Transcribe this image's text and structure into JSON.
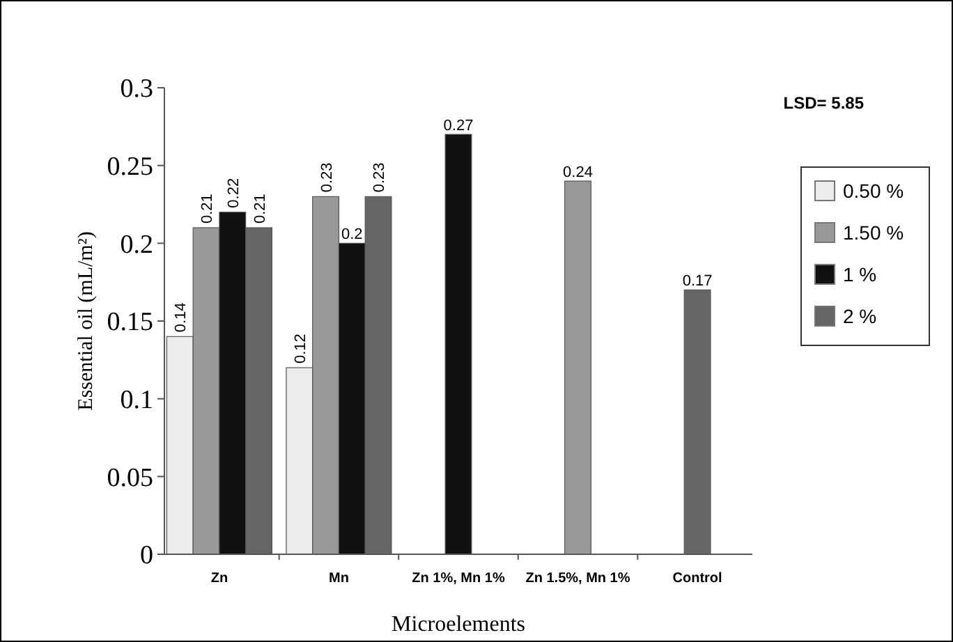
{
  "chart_data": {
    "type": "bar",
    "xlabel": "Microelements",
    "ylabel": "Essential oil (mL/m²)",
    "categories": [
      "Zn",
      "Mn",
      "Zn 1%, Mn 1%",
      "Zn 1.5%, Mn 1%",
      "Control"
    ],
    "series": [
      {
        "name": "0.50 %",
        "color": "#ececec",
        "values": [
          0.14,
          0.12,
          null,
          null,
          null
        ]
      },
      {
        "name": "1.50 %",
        "color": "#999999",
        "values": [
          0.21,
          0.23,
          null,
          0.24,
          null
        ]
      },
      {
        "name": "1 %",
        "color": "#111111",
        "values": [
          0.22,
          0.2,
          0.27,
          null,
          null
        ]
      },
      {
        "name": "2 %",
        "color": "#666666",
        "values": [
          0.21,
          0.23,
          null,
          null,
          0.17
        ]
      }
    ],
    "ylim": [
      0,
      0.3
    ],
    "yticks": [
      0,
      0.05,
      0.1,
      0.15,
      0.2,
      0.25,
      0.3
    ],
    "grid": false,
    "legend": "right",
    "data_labels": true,
    "annotations": [
      "LSD= 5.85"
    ]
  }
}
